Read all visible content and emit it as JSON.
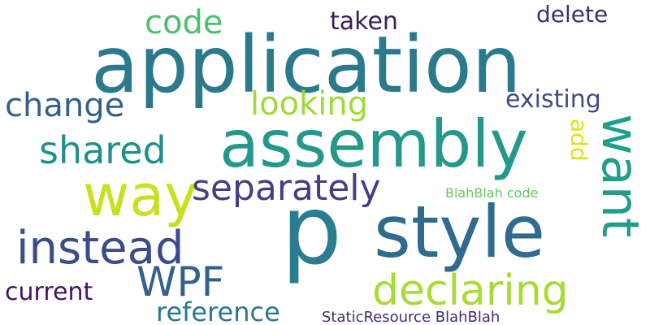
{
  "words": [
    {
      "text": "application",
      "color": "#2b7a8c"
    },
    {
      "text": "assembly",
      "color": "#23988b"
    },
    {
      "text": "p",
      "color": "#2a7d8e"
    },
    {
      "text": "style",
      "color": "#2f6b8e"
    },
    {
      "text": "want",
      "color": "#1f9e89"
    },
    {
      "text": "way",
      "color": "#c8e020"
    },
    {
      "text": "declaring",
      "color": "#a8db34"
    },
    {
      "text": "instead",
      "color": "#3a4d8a"
    },
    {
      "text": "WPF",
      "color": "#33608d"
    },
    {
      "text": "separately",
      "color": "#433e85"
    },
    {
      "text": "shared",
      "color": "#208f8c"
    },
    {
      "text": "change",
      "color": "#35608d"
    },
    {
      "text": "looking",
      "color": "#9fda3a"
    },
    {
      "text": "code",
      "color": "#4ac16d"
    },
    {
      "text": "existing",
      "color": "#3e4a89"
    },
    {
      "text": "current",
      "color": "#471365"
    },
    {
      "text": "reference",
      "color": "#2a778e"
    },
    {
      "text": "taken",
      "color": "#3b1f5a"
    },
    {
      "text": "delete",
      "color": "#3f2d6f"
    },
    {
      "text": "add",
      "color": "#dce319"
    },
    {
      "text": "BlahBlah code",
      "color": "#63cb5f"
    },
    {
      "text": "StaticResource BlahBlah",
      "color": "#472a72"
    }
  ]
}
